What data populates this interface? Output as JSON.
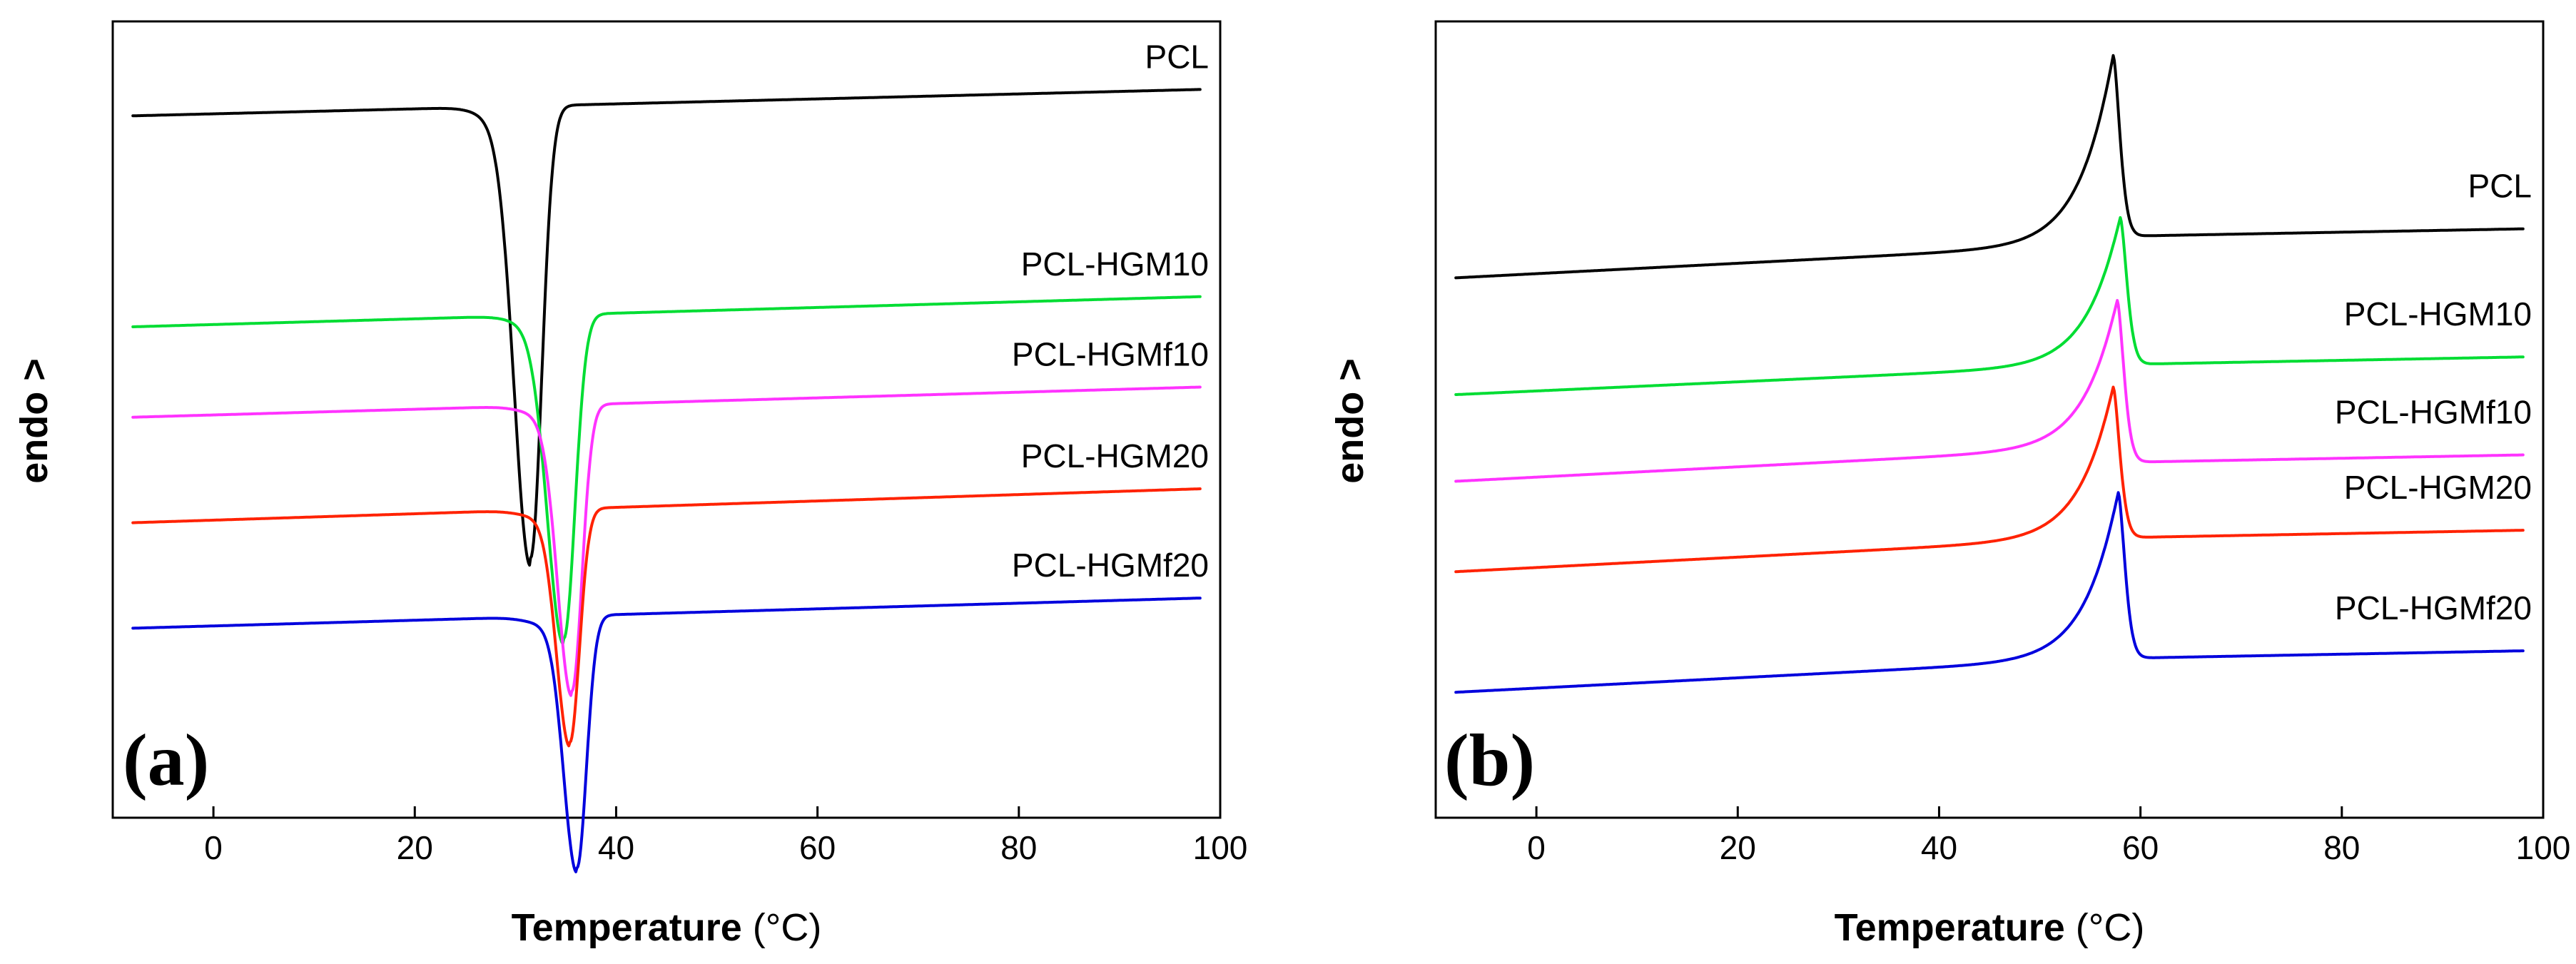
{
  "chart_data": [
    {
      "type": "line",
      "panel_label": "(a)",
      "ylabel_bold": "endo",
      "ylabel_rest": " >",
      "xlabel_bold": "Temperature",
      "xlabel_rest": " (°C)",
      "xlim": [
        -10,
        100
      ],
      "xticks": [
        0,
        20,
        40,
        60,
        80,
        100
      ],
      "xtick_labels": [
        "0",
        "20",
        "40",
        "60",
        "80",
        "100"
      ],
      "ylim": [
        0,
        1
      ],
      "peak_direction": "down",
      "series": [
        {
          "name": "PCL",
          "color": "#000000",
          "start": 0.905,
          "end": 0.94,
          "peak_x": 31.5,
          "peak_depth": 0.6,
          "left_width": 1.6,
          "right_width": 1.1,
          "onset": 28.5
        },
        {
          "name": "PCL-HGM10",
          "color": "#00dd33",
          "start": 0.625,
          "end": 0.665,
          "peak_x": 34.8,
          "peak_depth": 0.43,
          "left_width": 1.6,
          "right_width": 1.1,
          "onset": 31.5
        },
        {
          "name": "PCL-HGMf10",
          "color": "#ff33ff",
          "start": 0.505,
          "end": 0.545,
          "peak_x": 35.6,
          "peak_depth": 0.38,
          "left_width": 1.4,
          "right_width": 1.0,
          "onset": 32.5
        },
        {
          "name": "PCL-HGM20",
          "color": "#ff2200",
          "start": 0.365,
          "end": 0.41,
          "peak_x": 35.4,
          "peak_depth": 0.31,
          "left_width": 1.3,
          "right_width": 0.95,
          "onset": 32.5
        },
        {
          "name": "PCL-HGMf20",
          "color": "#0000dd",
          "start": 0.225,
          "end": 0.265,
          "peak_x": 36.1,
          "peak_depth": 0.335,
          "left_width": 1.3,
          "right_width": 0.95,
          "onset": 33.0
        }
      ]
    },
    {
      "type": "line",
      "panel_label": "(b)",
      "ylabel_bold": "endo",
      "ylabel_rest": " >",
      "xlabel_bold": "Temperature",
      "xlabel_rest": " (°C)",
      "xlim": [
        -10,
        100
      ],
      "xticks": [
        0,
        20,
        40,
        60,
        80,
        100
      ],
      "xtick_labels": [
        "0",
        "20",
        "40",
        "60",
        "80",
        "100"
      ],
      "ylim": [
        0,
        1
      ],
      "peak_direction": "up",
      "series": [
        {
          "name": "PCL",
          "color": "#000000",
          "pre_start": 0.69,
          "pre_end": 0.735,
          "post": 0.745,
          "post_end": 0.755,
          "peak_x": 57.3,
          "peak_y": 0.985
        },
        {
          "name": "PCL-HGM10",
          "color": "#00dd33",
          "pre_start": 0.535,
          "pre_end": 0.575,
          "post": 0.575,
          "post_end": 0.585,
          "peak_x": 58.0,
          "peak_y": 0.77
        },
        {
          "name": "PCL-HGMf10",
          "color": "#ff33ff",
          "pre_start": 0.42,
          "pre_end": 0.465,
          "post": 0.445,
          "post_end": 0.455,
          "peak_x": 57.7,
          "peak_y": 0.66
        },
        {
          "name": "PCL-HGM20",
          "color": "#ff2200",
          "pre_start": 0.3,
          "pre_end": 0.345,
          "post": 0.345,
          "post_end": 0.355,
          "peak_x": 57.3,
          "peak_y": 0.545
        },
        {
          "name": "PCL-HGMf20",
          "color": "#0000dd",
          "pre_start": 0.14,
          "pre_end": 0.185,
          "post": 0.185,
          "post_end": 0.195,
          "peak_x": 57.8,
          "peak_y": 0.405
        }
      ]
    }
  ]
}
